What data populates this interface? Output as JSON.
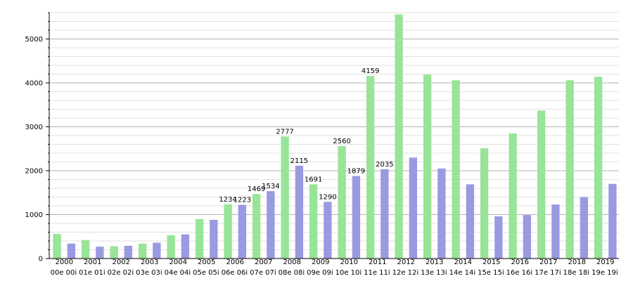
{
  "chart_data": {
    "type": "bar",
    "categories": [
      "00e",
      "00i",
      "01e",
      "01i",
      "02e",
      "02i",
      "03e",
      "03i",
      "04e",
      "04i",
      "05e",
      "05i",
      "06e",
      "06i",
      "07e",
      "07i",
      "08e",
      "08i",
      "09e",
      "09i",
      "10e",
      "10i",
      "11e",
      "11i",
      "12e",
      "12i",
      "13e",
      "13i",
      "14e",
      "14i",
      "15e",
      "15i",
      "16e",
      "16i",
      "17e",
      "17i",
      "18e",
      "18i",
      "19e",
      "19i"
    ],
    "values": [
      560,
      340,
      420,
      270,
      280,
      290,
      340,
      360,
      530,
      550,
      900,
      880,
      1234,
      1223,
      1469,
      1534,
      2777,
      2115,
      1691,
      1290,
      2560,
      1879,
      4159,
      2035,
      5560,
      2300,
      4190,
      2050,
      4060,
      1690,
      2510,
      960,
      2850,
      990,
      3370,
      1230,
      4060,
      1400,
      4140,
      1700
    ],
    "labels": [
      "",
      "",
      "",
      "",
      "",
      "",
      "",
      "",
      "",
      "",
      "",
      "",
      "1234",
      "1223",
      "1469",
      "1534",
      "2777",
      "2115",
      "1691",
      "1290",
      "2560",
      "1879",
      "4159",
      "2035",
      "",
      "",
      "",
      "",
      "",
      "",
      "",
      "",
      "",
      "",
      "",
      "",
      "",
      "",
      "",
      ""
    ],
    "year_labels": [
      "2000",
      "2001",
      "2002",
      "2003",
      "2004",
      "2005",
      "2006",
      "2007",
      "2008",
      "2009",
      "2010",
      "2011",
      "2012",
      "2013",
      "2014",
      "2015",
      "2016",
      "2017",
      "2018",
      "2019"
    ],
    "y_ticks": [
      0,
      1000,
      2000,
      3000,
      4000,
      5000
    ],
    "ylim": [
      0,
      5600
    ],
    "minor_step": 200,
    "grid": true,
    "colors": {
      "e": "#98e498",
      "i": "#9a9ae2",
      "major_grid": "#999999",
      "minor_grid": "#d8d8d8"
    }
  }
}
